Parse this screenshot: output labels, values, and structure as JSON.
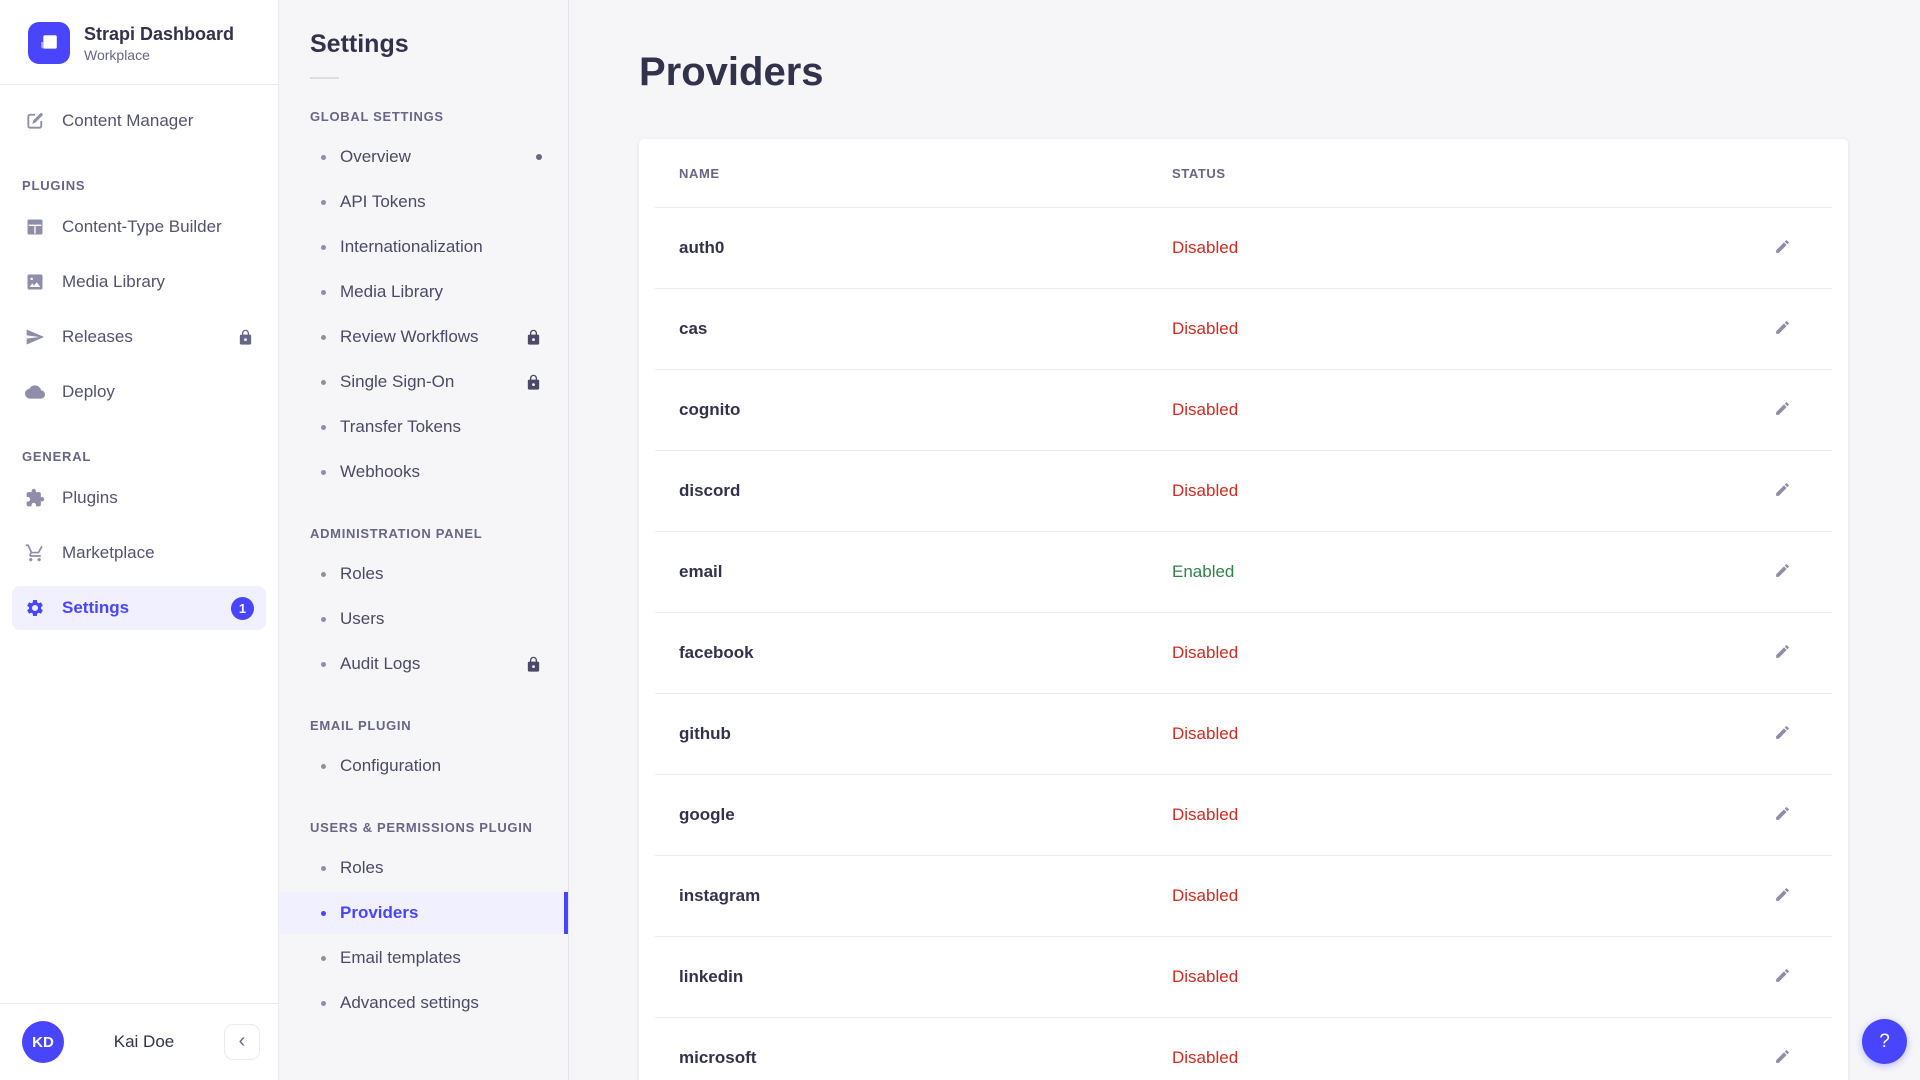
{
  "brand": {
    "title": "Strapi Dashboard",
    "subtitle": "Workplace",
    "logo_icon": "strapi-logo-icon"
  },
  "sidebar": {
    "top_item": {
      "label": "Content Manager",
      "icon": "pen"
    },
    "sections": [
      {
        "label": "PLUGINS",
        "items": [
          {
            "label": "Content-Type Builder",
            "icon": "grid"
          },
          {
            "label": "Media Library",
            "icon": "image"
          },
          {
            "label": "Releases",
            "icon": "plane",
            "locked": true
          },
          {
            "label": "Deploy",
            "icon": "cloud"
          }
        ]
      },
      {
        "label": "GENERAL",
        "items": [
          {
            "label": "Plugins",
            "icon": "puzzle"
          },
          {
            "label": "Marketplace",
            "icon": "cart"
          },
          {
            "label": "Settings",
            "icon": "gear",
            "active": true,
            "badge": "1"
          }
        ]
      }
    ],
    "user": {
      "initials": "KD",
      "name": "Kai Doe",
      "collapse_icon": "chevron-left",
      "collapse_glyph": "‹"
    }
  },
  "subnav": {
    "title": "Settings",
    "sections": [
      {
        "label": "GLOBAL SETTINGS",
        "items": [
          {
            "label": "Overview",
            "notification_dot": true
          },
          {
            "label": "API Tokens"
          },
          {
            "label": "Internationalization"
          },
          {
            "label": "Media Library"
          },
          {
            "label": "Review Workflows",
            "locked": true
          },
          {
            "label": "Single Sign-On",
            "locked": true
          },
          {
            "label": "Transfer Tokens"
          },
          {
            "label": "Webhooks"
          }
        ]
      },
      {
        "label": "ADMINISTRATION PANEL",
        "items": [
          {
            "label": "Roles"
          },
          {
            "label": "Users"
          },
          {
            "label": "Audit Logs",
            "locked": true
          }
        ]
      },
      {
        "label": "EMAIL PLUGIN",
        "items": [
          {
            "label": "Configuration"
          }
        ]
      },
      {
        "label": "USERS & PERMISSIONS PLUGIN",
        "items": [
          {
            "label": "Roles"
          },
          {
            "label": "Providers",
            "active": true
          },
          {
            "label": "Email templates"
          },
          {
            "label": "Advanced settings"
          }
        ]
      }
    ]
  },
  "main": {
    "title": "Providers",
    "table": {
      "columns": [
        "NAME",
        "STATUS"
      ],
      "rows": [
        {
          "name": "auth0",
          "status": "Disabled"
        },
        {
          "name": "cas",
          "status": "Disabled"
        },
        {
          "name": "cognito",
          "status": "Disabled"
        },
        {
          "name": "discord",
          "status": "Disabled"
        },
        {
          "name": "email",
          "status": "Enabled"
        },
        {
          "name": "facebook",
          "status": "Disabled"
        },
        {
          "name": "github",
          "status": "Disabled"
        },
        {
          "name": "google",
          "status": "Disabled"
        },
        {
          "name": "instagram",
          "status": "Disabled"
        },
        {
          "name": "linkedin",
          "status": "Disabled"
        },
        {
          "name": "microsoft",
          "status": "Disabled"
        }
      ]
    },
    "help_label": "?"
  },
  "colors": {
    "accent": "#4945FF",
    "active_bg": "#F0F0FF",
    "status_disabled": "#D02B20",
    "status_enabled": "#328048",
    "text_dark": "#32324D",
    "text_gray": "#666687",
    "icon_gray": "#8E8EA9"
  }
}
